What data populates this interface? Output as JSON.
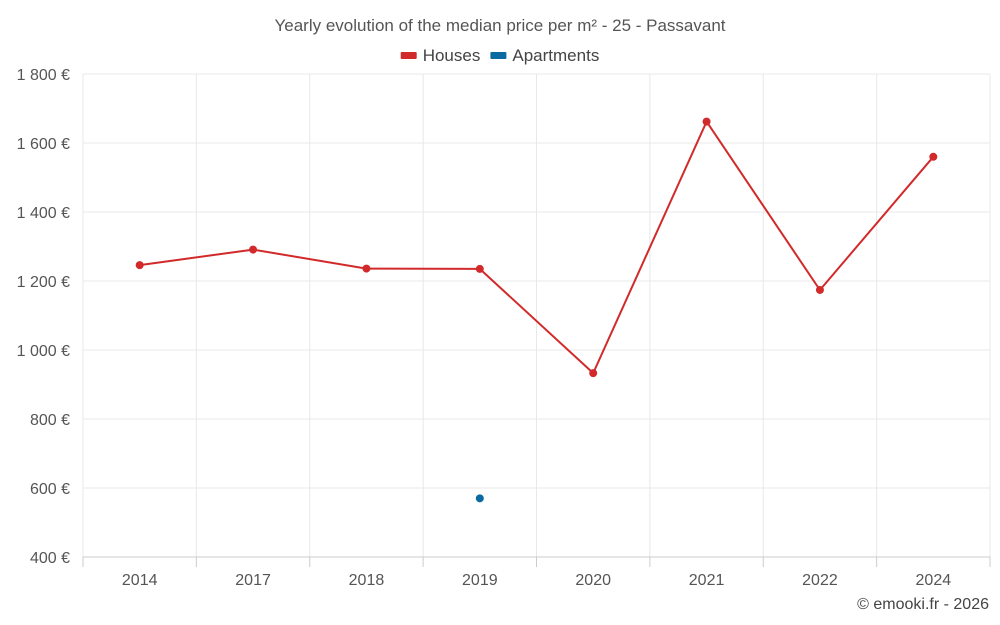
{
  "chart_data": {
    "type": "line",
    "title": "Yearly evolution of the median price per m² - 25 - Passavant",
    "categories": [
      "2014",
      "2017",
      "2018",
      "2019",
      "2020",
      "2021",
      "2022",
      "2024"
    ],
    "series": [
      {
        "name": "Houses",
        "color": "#d22a2a",
        "values": [
          1246,
          1291,
          1236,
          1235,
          933,
          1662,
          1174,
          1560
        ]
      },
      {
        "name": "Apartments",
        "color": "#0b6aa0",
        "values": [
          null,
          null,
          null,
          570,
          null,
          null,
          null,
          null
        ]
      }
    ],
    "ylim": [
      400,
      1800
    ],
    "yticks": [
      400,
      600,
      800,
      1000,
      1200,
      1400,
      1600,
      1800
    ],
    "ytick_labels": [
      "400 €",
      "600 €",
      "800 €",
      "1 000 €",
      "1 200 €",
      "1 400 €",
      "1 600 €",
      "1 800 €"
    ],
    "xlabel": "",
    "ylabel": "",
    "legend_position": "top-center",
    "grid": true,
    "credit": "© emooki.fr - 2026"
  }
}
